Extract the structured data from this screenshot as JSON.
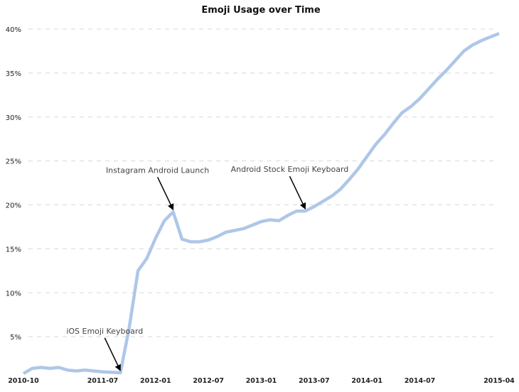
{
  "chart_data": {
    "type": "line",
    "title": "Emoji Usage over Time",
    "xlabel": "",
    "ylabel": "",
    "ylim": [
      0,
      40
    ],
    "yticks": [
      "5%",
      "10%",
      "15%",
      "20%",
      "25%",
      "30%",
      "35%",
      "40%"
    ],
    "ytick_values": [
      5,
      10,
      15,
      20,
      25,
      30,
      35,
      40
    ],
    "xticks": [
      "2010-10",
      "2011-07",
      "2012-01",
      "2012-07",
      "2013-01",
      "2013-07",
      "2014-01",
      "2014-07",
      "2015-04"
    ],
    "grid": "horizontal-dashed",
    "line_color": "#aec7e8",
    "x": [
      "2010-10",
      "2010-11",
      "2010-12",
      "2011-01",
      "2011-02",
      "2011-03",
      "2011-04",
      "2011-05",
      "2011-06",
      "2011-07",
      "2011-08",
      "2011-09",
      "2011-10",
      "2011-11",
      "2011-12",
      "2012-01",
      "2012-02",
      "2012-03",
      "2012-04",
      "2012-05",
      "2012-06",
      "2012-07",
      "2012-08",
      "2012-09",
      "2012-10",
      "2012-11",
      "2012-12",
      "2013-01",
      "2013-02",
      "2013-03",
      "2013-04",
      "2013-05",
      "2013-06",
      "2013-07",
      "2013-08",
      "2013-09",
      "2013-10",
      "2013-11",
      "2013-12",
      "2014-01",
      "2014-02",
      "2014-03",
      "2014-04",
      "2014-05",
      "2014-06",
      "2014-07",
      "2014-08",
      "2014-09",
      "2014-10",
      "2014-11",
      "2014-12",
      "2015-01",
      "2015-02",
      "2015-03",
      "2015-04"
    ],
    "values": [
      0.8,
      1.4,
      1.5,
      1.4,
      1.5,
      1.2,
      1.1,
      1.2,
      1.1,
      1.0,
      0.95,
      0.9,
      6.0,
      12.5,
      13.9,
      16.2,
      18.2,
      19.2,
      16.1,
      15.8,
      15.8,
      16.0,
      16.4,
      16.9,
      17.1,
      17.3,
      17.7,
      18.1,
      18.3,
      18.2,
      18.8,
      19.3,
      19.3,
      19.8,
      20.4,
      21.0,
      21.8,
      22.9,
      24.1,
      25.5,
      26.9,
      28.0,
      29.3,
      30.5,
      31.2,
      32.1,
      33.2,
      34.3,
      35.3,
      36.4,
      37.5,
      38.2,
      38.7,
      39.1,
      39.5
    ],
    "annotations": [
      {
        "text": "iOS Emoji Keyboard",
        "x": "2011-09"
      },
      {
        "text": "Instagram Android Launch",
        "x": "2012-03"
      },
      {
        "text": "Android Stock Emoji Keyboard",
        "x": "2013-06"
      }
    ]
  }
}
